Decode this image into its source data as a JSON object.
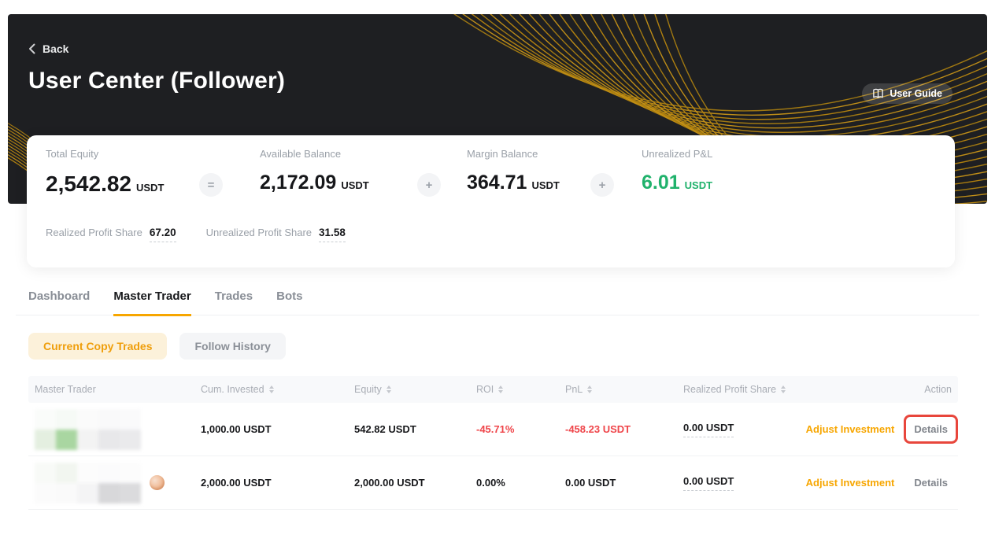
{
  "colors": {
    "brand_orange": "#f7a600",
    "positive_green": "#20b26c",
    "negative_red": "#ef454a",
    "annotation_red": "#e8463c",
    "hero_background": "#1e1f22",
    "wave_gold": "#c08a14"
  },
  "hero": {
    "back_label": "Back",
    "title": "User Center (Follower)",
    "user_guide_label": "User Guide"
  },
  "summary": {
    "stats": [
      {
        "label": "Total Equity",
        "value": "2,542.82",
        "unit": "USDT"
      },
      {
        "label": "Available Balance",
        "value": "2,172.09",
        "unit": "USDT"
      },
      {
        "label": "Margin Balance",
        "value": "364.71",
        "unit": "USDT"
      },
      {
        "label": "Unrealized P&L",
        "value": "6.01",
        "unit": "USDT"
      }
    ],
    "operators": [
      "=",
      "+",
      "+"
    ],
    "secondary": [
      {
        "label": "Realized Profit Share",
        "value": "67.20"
      },
      {
        "label": "Unrealized Profit Share",
        "value": "31.58"
      }
    ]
  },
  "tabs": [
    {
      "label": "Dashboard"
    },
    {
      "label": "Master Trader"
    },
    {
      "label": "Trades"
    },
    {
      "label": "Bots"
    }
  ],
  "active_tab": "Master Trader",
  "subtabs": [
    {
      "label": "Current Copy Trades"
    },
    {
      "label": "Follow History"
    }
  ],
  "active_subtab": "Current Copy Trades",
  "table": {
    "columns": [
      {
        "label": "Master Trader",
        "sortable": false
      },
      {
        "label": "Cum. Invested",
        "sortable": true
      },
      {
        "label": "Equity",
        "sortable": true
      },
      {
        "label": "ROI",
        "sortable": true
      },
      {
        "label": "PnL",
        "sortable": true
      },
      {
        "label": "Realized Profit Share",
        "sortable": true
      },
      {
        "label": "Action",
        "sortable": false
      }
    ],
    "rows": [
      {
        "master_trader_redacted": true,
        "cum_invested": "1,000.00 USDT",
        "equity": "542.82 USDT",
        "roi": "-45.71%",
        "pnl": "-458.23 USDT",
        "realized_profit_share": "0.00 USDT",
        "adjust_label": "Adjust Investment",
        "details_label": "Details",
        "details_highlighted": true
      },
      {
        "master_trader_redacted": true,
        "cum_invested": "2,000.00 USDT",
        "equity": "2,000.00 USDT",
        "roi": "0.00%",
        "pnl": "0.00 USDT",
        "realized_profit_share": "0.00 USDT",
        "adjust_label": "Adjust Investment",
        "details_label": "Details",
        "details_highlighted": false
      }
    ]
  }
}
